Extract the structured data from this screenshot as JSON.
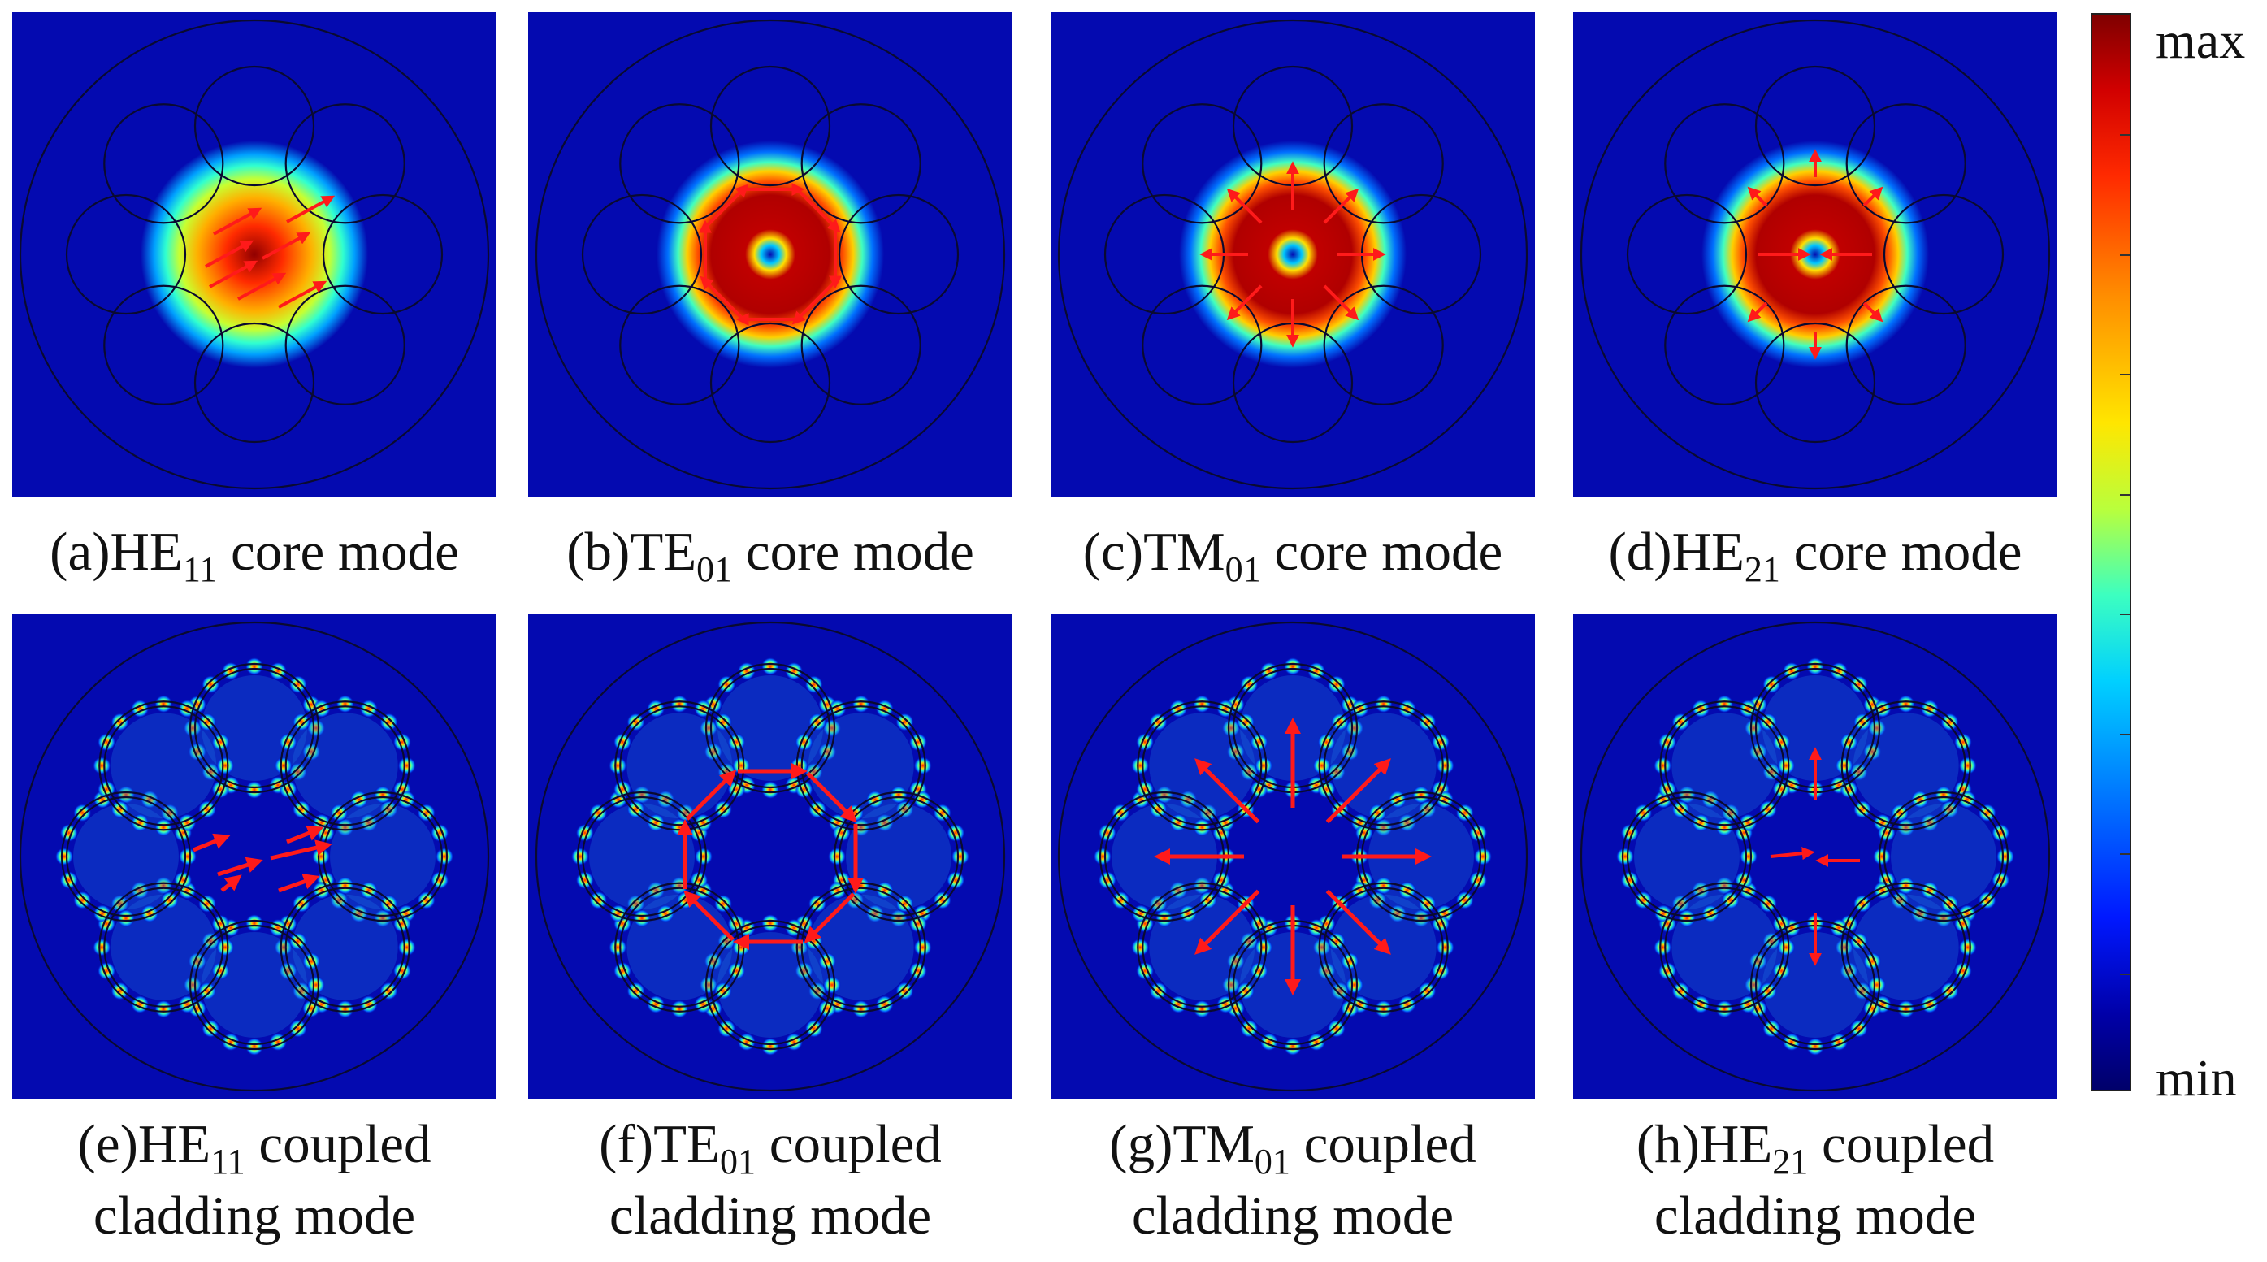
{
  "figure": {
    "panels": [
      {
        "id": "a",
        "label": "(a)",
        "mode": "HE",
        "sub": "11",
        "caption_rest": " core mode",
        "caption_line2": "",
        "kind": "core",
        "pattern": "gauss"
      },
      {
        "id": "b",
        "label": "(b)",
        "mode": "TE",
        "sub": "01",
        "caption_rest": " core mode",
        "caption_line2": "",
        "kind": "core",
        "pattern": "ring"
      },
      {
        "id": "c",
        "label": "(c)",
        "mode": "TM",
        "sub": "01",
        "caption_rest": " core mode",
        "caption_line2": "",
        "kind": "core",
        "pattern": "ring"
      },
      {
        "id": "d",
        "label": "(d)",
        "mode": "HE",
        "sub": "21",
        "caption_rest": " core mode",
        "caption_line2": "",
        "kind": "core",
        "pattern": "ring"
      },
      {
        "id": "e",
        "label": "(e)",
        "mode": "HE",
        "sub": "11",
        "caption_rest": " coupled",
        "caption_line2": "cladding mode",
        "kind": "cladding",
        "pattern": "uniform"
      },
      {
        "id": "f",
        "label": "(f)",
        "mode": "TE",
        "sub": "01",
        "caption_rest": " coupled",
        "caption_line2": "cladding mode",
        "kind": "cladding",
        "pattern": "azimuthal"
      },
      {
        "id": "g",
        "label": "(g)",
        "mode": "TM",
        "sub": "01",
        "caption_rest": " coupled",
        "caption_line2": "cladding mode",
        "kind": "cladding",
        "pattern": "radial"
      },
      {
        "id": "h",
        "label": "(h)",
        "mode": "HE",
        "sub": "21",
        "caption_rest": " coupled",
        "caption_line2": "cladding mode",
        "kind": "cladding",
        "pattern": "hybrid"
      }
    ],
    "colorbar": {
      "max_label": "max",
      "min_label": "min"
    },
    "colors": {
      "background": "#040ab0",
      "arrow": "#ff1a1a",
      "outline": "#0a0a30"
    }
  }
}
